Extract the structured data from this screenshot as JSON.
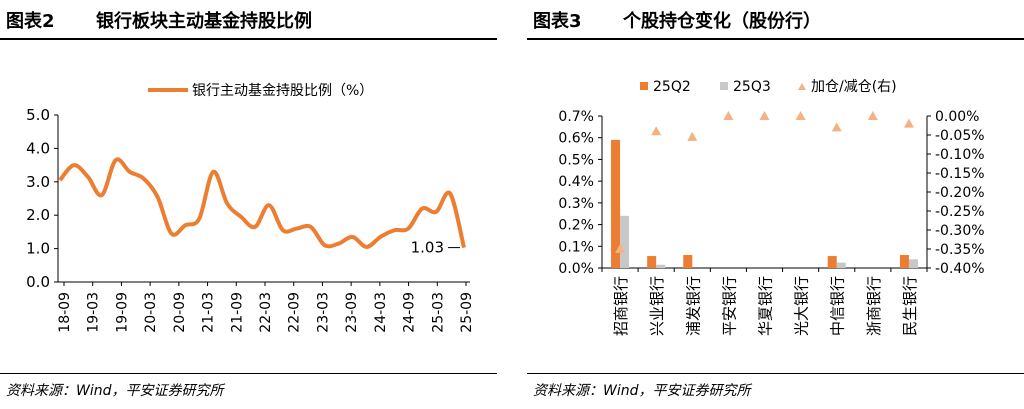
{
  "left_panel": {
    "figure_no": "图表2",
    "title": "银行板块主动基金持股比例",
    "source": "资料来源：Wind，平安证券研究所"
  },
  "right_panel": {
    "figure_no": "图表3",
    "title": "个股持仓变化（股份行）",
    "source": "资料来源：Wind，平安证券研究所"
  },
  "chart_data": [
    {
      "type": "line",
      "legend": [
        "银行主动基金持股比例（%）"
      ],
      "series": [
        {
          "name": "银行主动基金持股比例（%）",
          "color": "#ED7D31",
          "values": [
            3.05,
            3.5,
            3.15,
            2.6,
            3.65,
            3.3,
            3.1,
            2.55,
            1.45,
            1.7,
            1.9,
            3.3,
            2.35,
            1.95,
            1.65,
            2.3,
            1.55,
            1.6,
            1.65,
            1.1,
            1.15,
            1.35,
            1.05,
            1.35,
            1.55,
            1.6,
            2.2,
            2.1,
            2.65,
            1.03
          ]
        }
      ],
      "x_tick_labels": [
        "18-09",
        "19-03",
        "19-09",
        "20-03",
        "20-09",
        "21-03",
        "21-09",
        "22-03",
        "22-09",
        "23-03",
        "23-09",
        "24-03",
        "24-09",
        "25-03",
        "25-09"
      ],
      "y_tick_labels": [
        "0.0",
        "1.0",
        "2.0",
        "3.0",
        "4.0",
        "5.0"
      ],
      "ylim": [
        0,
        5
      ],
      "annotation": "1.03",
      "grid": false,
      "legend_position": "top"
    },
    {
      "type": "bar",
      "categories": [
        "招商银行",
        "兴业银行",
        "浦发银行",
        "平安银行",
        "华夏银行",
        "光大银行",
        "中信银行",
        "浙商银行",
        "民生银行"
      ],
      "series": [
        {
          "name": "25Q2",
          "color": "#ED7D31",
          "axis": "left",
          "values": [
            0.59,
            0.055,
            0.06,
            0.0,
            0.0,
            0.0,
            0.055,
            0.0,
            0.06
          ]
        },
        {
          "name": "25Q3",
          "color": "#C8C8C8",
          "axis": "left",
          "values": [
            0.24,
            0.015,
            0.0,
            0.0,
            0.0,
            0.0,
            0.025,
            0.0,
            0.04
          ]
        },
        {
          "name": "加仓/减仓(右)",
          "type": "scatter",
          "marker": "triangle",
          "color": "#F4B183",
          "axis": "right",
          "values": [
            -0.35,
            -0.04,
            -0.055,
            0.0,
            0.0,
            0.0,
            -0.03,
            0.0,
            -0.02
          ]
        }
      ],
      "y_left_tick_labels": [
        "0.0%",
        "0.1%",
        "0.2%",
        "0.3%",
        "0.4%",
        "0.5%",
        "0.6%",
        "0.7%"
      ],
      "y_right_tick_labels": [
        "0.00%",
        "-0.05%",
        "-0.10%",
        "-0.15%",
        "-0.20%",
        "-0.25%",
        "-0.30%",
        "-0.35%",
        "-0.40%"
      ],
      "ylim_left": [
        0,
        0.7
      ],
      "ylim_right": [
        -0.4,
        0
      ],
      "legend_position": "top",
      "grid": false
    }
  ]
}
